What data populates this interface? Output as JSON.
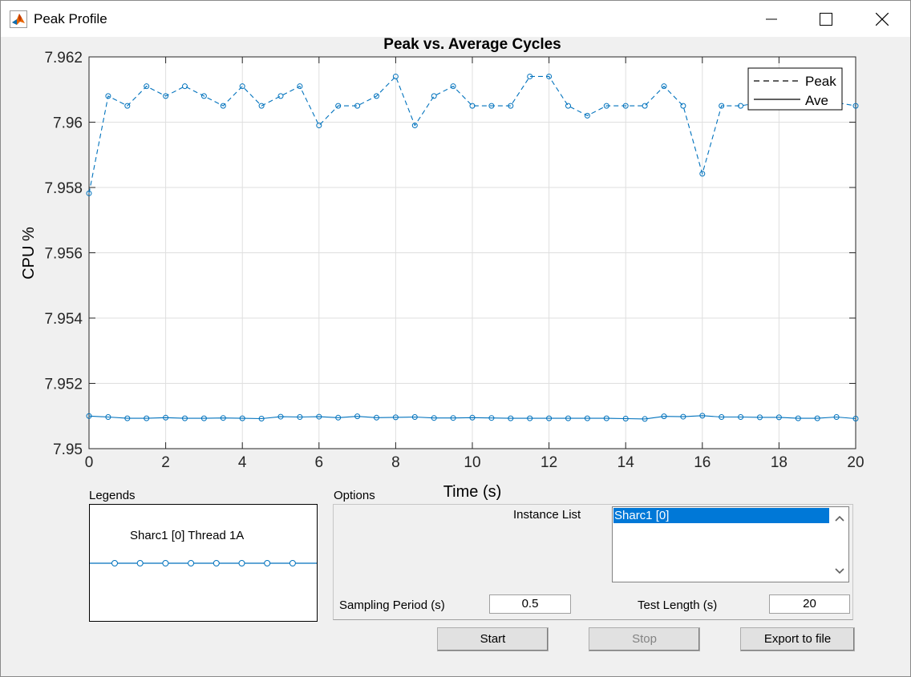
{
  "window": {
    "title": "Peak Profile",
    "icons": {
      "app": "matlab-icon",
      "minimize": "minimize-icon",
      "maximize": "maximize-icon",
      "close": "close-icon"
    }
  },
  "chart_data": {
    "type": "line",
    "title": "Peak vs. Average Cycles",
    "xlabel": "Time (s)",
    "ylabel": "CPU %",
    "xlim": [
      0,
      20
    ],
    "ylim": [
      7.95,
      7.962
    ],
    "xticks": [
      0,
      2,
      4,
      6,
      8,
      10,
      12,
      14,
      16,
      18,
      20
    ],
    "yticks": [
      7.95,
      7.952,
      7.954,
      7.956,
      7.958,
      7.96,
      7.962
    ],
    "ytick_labels": [
      "7.95",
      "7.952",
      "7.954",
      "7.956",
      "7.958",
      "7.96",
      "7.962"
    ],
    "grid": true,
    "legend_position": "top-right",
    "x": [
      0,
      0.5,
      1,
      1.5,
      2,
      2.5,
      3,
      3.5,
      4,
      4.5,
      5,
      5.5,
      6,
      6.5,
      7,
      7.5,
      8,
      8.5,
      9,
      9.5,
      10,
      10.5,
      11,
      11.5,
      12,
      12.5,
      13,
      13.5,
      14,
      14.5,
      15,
      15.5,
      16,
      16.5,
      17,
      17.5,
      18,
      18.5,
      19,
      19.5,
      20
    ],
    "series": [
      {
        "name": "Peak",
        "style": "dashed",
        "color": "#0072bd",
        "values": [
          7.95782,
          7.9608,
          7.9605,
          7.9611,
          7.9608,
          7.9611,
          7.9608,
          7.9605,
          7.9611,
          7.9605,
          7.9608,
          7.9611,
          7.9599,
          7.9605,
          7.9605,
          7.9608,
          7.9614,
          7.9599,
          7.9608,
          7.9611,
          7.9605,
          7.9605,
          7.9605,
          7.9614,
          7.9614,
          7.9605,
          7.9602,
          7.9605,
          7.9605,
          7.9605,
          7.9611,
          7.9605,
          7.95842,
          7.9605,
          7.9605,
          7.9606,
          7.9606,
          7.9606,
          7.9606,
          7.9606,
          7.9605
        ]
      },
      {
        "name": "Ave",
        "style": "solid",
        "color": "#0072bd",
        "values": [
          7.951,
          7.95097,
          7.95093,
          7.95093,
          7.95095,
          7.95093,
          7.95093,
          7.95094,
          7.95093,
          7.95092,
          7.95098,
          7.95097,
          7.95098,
          7.95095,
          7.95099,
          7.95095,
          7.95096,
          7.95097,
          7.95094,
          7.95094,
          7.95095,
          7.95094,
          7.95093,
          7.95093,
          7.95093,
          7.95093,
          7.95093,
          7.95093,
          7.95092,
          7.95091,
          7.95099,
          7.95098,
          7.95101,
          7.95097,
          7.95097,
          7.95096,
          7.95096,
          7.95093,
          7.95093,
          7.95097,
          7.95092
        ]
      }
    ]
  },
  "legends_panel": {
    "label": "Legends",
    "entry": "Sharc1 [0] Thread 1A",
    "marker_count": 8
  },
  "options_panel": {
    "label": "Options",
    "instance_list_label": "Instance List",
    "instance_items": [
      "Sharc1 [0]"
    ],
    "sampling_period_label": "Sampling Period (s)",
    "sampling_period_value": "0.5",
    "test_length_label": "Test Length (s)",
    "test_length_value": "20"
  },
  "buttons": {
    "start": "Start",
    "stop": "Stop",
    "export": "Export to file"
  },
  "colors": {
    "line": "#0072bd",
    "selection": "#0078d7"
  }
}
